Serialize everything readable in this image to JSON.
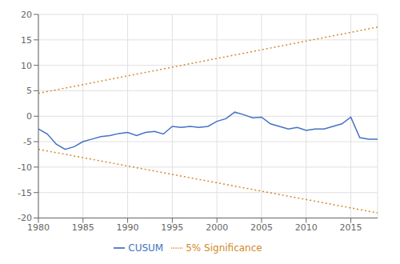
{
  "chart_data": {
    "type": "line",
    "series": [
      {
        "name": "CUSUM",
        "color": "#4472C4",
        "line_style": "solid",
        "x": [
          1980,
          1981,
          1982,
          1983,
          1984,
          1985,
          1986,
          1987,
          1988,
          1989,
          1990,
          1991,
          1992,
          1993,
          1994,
          1995,
          1996,
          1997,
          1998,
          1999,
          2000,
          2001,
          2002,
          2003,
          2004,
          2005,
          2006,
          2007,
          2008,
          2009,
          2010,
          2011,
          2012,
          2013,
          2014,
          2015,
          2016,
          2017,
          2018
        ],
        "values": [
          -2.5,
          -3.5,
          -5.5,
          -6.5,
          -6.0,
          -5.0,
          -4.5,
          -4.0,
          -3.8,
          -3.4,
          -3.2,
          -3.8,
          -3.2,
          -3.0,
          -3.5,
          -2.0,
          -2.2,
          -2.0,
          -2.2,
          -2.0,
          -1.0,
          -0.5,
          0.8,
          0.3,
          -0.3,
          -0.2,
          -1.5,
          -2.0,
          -2.5,
          -2.2,
          -2.8,
          -2.5,
          -2.5,
          -2.0,
          -1.5,
          -0.2,
          -4.2,
          -4.5,
          -4.5
        ]
      },
      {
        "name": "5% Significance",
        "color": "#D4882A",
        "line_style": "dotted",
        "x": [
          1980,
          2018
        ],
        "values": [
          4.5,
          17.5
        ]
      },
      {
        "name": "5% Significance",
        "color": "#D4882A",
        "line_style": "dotted",
        "x": [
          1980,
          2018
        ],
        "values": [
          -6.5,
          -19.0
        ]
      }
    ],
    "xlim": [
      1980,
      2018
    ],
    "ylim": [
      -20,
      20
    ],
    "xticks": [
      1980,
      1985,
      1990,
      1995,
      2000,
      2005,
      2010,
      2015
    ],
    "yticks": [
      -20,
      -15,
      -10,
      -5,
      0,
      5,
      10,
      15,
      20
    ],
    "grid": true,
    "legend": "bottom"
  }
}
